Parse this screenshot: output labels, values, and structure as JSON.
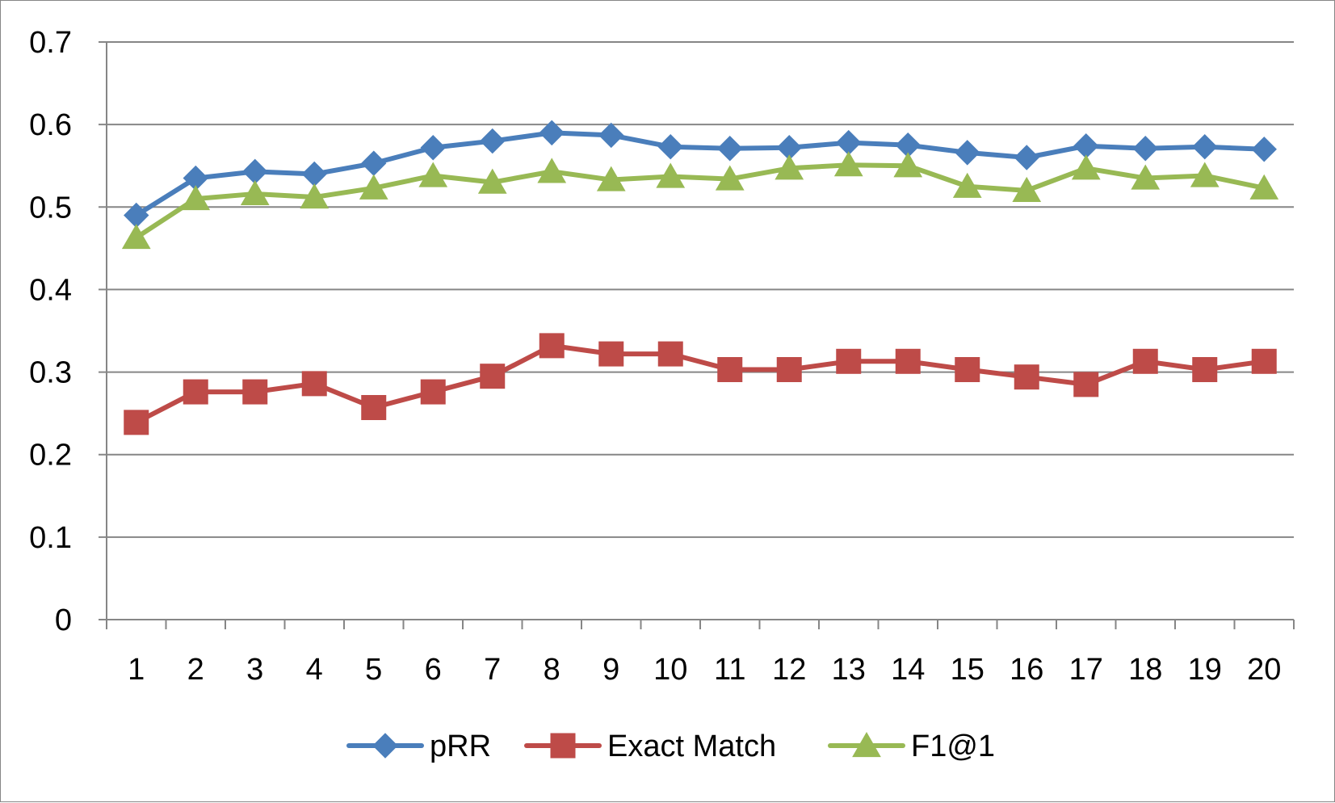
{
  "chart_data": {
    "type": "line",
    "title": "",
    "xlabel": "",
    "ylabel": "",
    "categories": [
      "1",
      "2",
      "3",
      "4",
      "5",
      "6",
      "7",
      "8",
      "9",
      "10",
      "11",
      "12",
      "13",
      "14",
      "15",
      "16",
      "17",
      "18",
      "19",
      "20"
    ],
    "ylim": [
      0,
      0.7
    ],
    "yticks": [
      0,
      0.1,
      0.2,
      0.3,
      0.4,
      0.5,
      0.6,
      0.7
    ],
    "ytick_labels": [
      "0",
      "0.1",
      "0.2",
      "0.3",
      "0.4",
      "0.5",
      "0.6",
      "0.7"
    ],
    "grid": true,
    "legend_position": "bottom",
    "series": [
      {
        "name": "pRR",
        "color": "#4a7ebb",
        "marker": "diamond",
        "values": [
          0.49,
          0.535,
          0.543,
          0.54,
          0.553,
          0.572,
          0.58,
          0.59,
          0.587,
          0.573,
          0.571,
          0.572,
          0.578,
          0.575,
          0.566,
          0.56,
          0.574,
          0.571,
          0.573,
          0.57
        ]
      },
      {
        "name": "Exact Match",
        "color": "#be4b48",
        "marker": "square",
        "values": [
          0.239,
          0.276,
          0.276,
          0.286,
          0.257,
          0.276,
          0.295,
          0.332,
          0.322,
          0.322,
          0.303,
          0.303,
          0.313,
          0.313,
          0.303,
          0.294,
          0.285,
          0.313,
          0.303,
          0.313
        ]
      },
      {
        "name": "F1@1",
        "color": "#98b954",
        "marker": "triangle",
        "values": [
          0.463,
          0.51,
          0.516,
          0.512,
          0.523,
          0.538,
          0.53,
          0.543,
          0.533,
          0.537,
          0.534,
          0.547,
          0.551,
          0.55,
          0.525,
          0.52,
          0.547,
          0.535,
          0.538,
          0.523
        ]
      }
    ]
  }
}
